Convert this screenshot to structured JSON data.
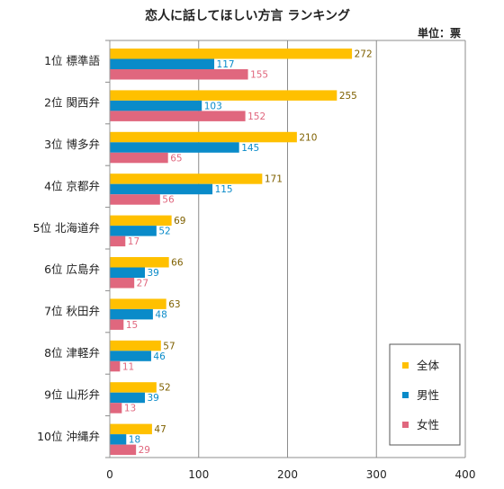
{
  "chart_data": {
    "type": "bar",
    "orientation": "horizontal",
    "title": "恋人に話してほしい方言 ランキング",
    "unit_label": "単位：票",
    "categories": [
      "1位 標準語",
      "2位 関西弁",
      "3位 博多弁",
      "4位 京都弁",
      "5位 北海道弁",
      "6位 広島弁",
      "7位 秋田弁",
      "8位 津軽弁",
      "9位 山形弁",
      "10位 沖縄弁"
    ],
    "series": [
      {
        "name": "全体",
        "color": "#FFC000",
        "label_color": "#7F6000",
        "values": [
          272,
          255,
          210,
          171,
          69,
          66,
          63,
          57,
          52,
          47
        ]
      },
      {
        "name": "男性",
        "color": "#0A8BC9",
        "label_color": "#0A8BC9",
        "values": [
          117,
          103,
          145,
          115,
          52,
          39,
          48,
          46,
          39,
          18
        ]
      },
      {
        "name": "女性",
        "color": "#E0677E",
        "label_color": "#E0677E",
        "values": [
          155,
          152,
          65,
          56,
          17,
          27,
          15,
          11,
          13,
          29
        ]
      }
    ],
    "xlim": [
      0,
      400
    ],
    "xticks": [
      0,
      100,
      200,
      300,
      400
    ],
    "grid": true,
    "legend_position": "bottom-right"
  }
}
